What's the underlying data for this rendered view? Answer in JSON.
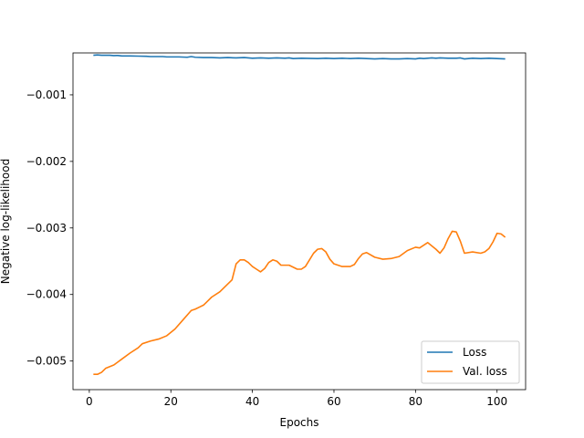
{
  "chart_data": {
    "type": "line",
    "title": "",
    "xlabel": "Epochs",
    "ylabel": "Negative log-likelihood",
    "xlim": [
      -4,
      107
    ],
    "ylim": [
      -0.00543,
      -0.00037
    ],
    "xticks": [
      0,
      20,
      40,
      60,
      80,
      100
    ],
    "xtick_labels": [
      "0",
      "20",
      "40",
      "60",
      "80",
      "100"
    ],
    "yticks": [
      -0.005,
      -0.004,
      -0.003,
      -0.002,
      -0.001
    ],
    "ytick_labels": [
      "−0.005",
      "−0.004",
      "−0.003",
      "−0.002",
      "−0.001"
    ],
    "grid": false,
    "legend_position": "lower-right",
    "series": [
      {
        "name": "Loss",
        "color": "#1f77b4",
        "points": [
          [
            1,
            -0.000405
          ],
          [
            2,
            -0.0004
          ],
          [
            3,
            -0.000405
          ],
          [
            5,
            -0.000405
          ],
          [
            6,
            -0.00041
          ],
          [
            7,
            -0.000408
          ],
          [
            8,
            -0.000415
          ],
          [
            10,
            -0.000415
          ],
          [
            12,
            -0.000418
          ],
          [
            14,
            -0.00042
          ],
          [
            15,
            -0.000425
          ],
          [
            18,
            -0.000425
          ],
          [
            19,
            -0.00043
          ],
          [
            22,
            -0.00043
          ],
          [
            24,
            -0.000435
          ],
          [
            25,
            -0.000425
          ],
          [
            26,
            -0.000435
          ],
          [
            28,
            -0.00044
          ],
          [
            30,
            -0.00044
          ],
          [
            32,
            -0.000445
          ],
          [
            34,
            -0.00044
          ],
          [
            36,
            -0.000445
          ],
          [
            38,
            -0.00044
          ],
          [
            40,
            -0.00045
          ],
          [
            42,
            -0.000445
          ],
          [
            44,
            -0.00045
          ],
          [
            46,
            -0.000445
          ],
          [
            48,
            -0.00045
          ],
          [
            49,
            -0.000445
          ],
          [
            50,
            -0.000455
          ],
          [
            52,
            -0.00045
          ],
          [
            56,
            -0.000455
          ],
          [
            58,
            -0.00045
          ],
          [
            60,
            -0.000455
          ],
          [
            62,
            -0.00045
          ],
          [
            64,
            -0.000455
          ],
          [
            66,
            -0.00045
          ],
          [
            68,
            -0.000455
          ],
          [
            70,
            -0.00046
          ],
          [
            72,
            -0.000455
          ],
          [
            74,
            -0.00046
          ],
          [
            76,
            -0.00046
          ],
          [
            78,
            -0.000455
          ],
          [
            80,
            -0.00046
          ],
          [
            81,
            -0.00045
          ],
          [
            82,
            -0.000455
          ],
          [
            84,
            -0.000445
          ],
          [
            85,
            -0.00045
          ],
          [
            86,
            -0.000445
          ],
          [
            88,
            -0.00045
          ],
          [
            90,
            -0.00045
          ],
          [
            91,
            -0.000445
          ],
          [
            92,
            -0.00046
          ],
          [
            94,
            -0.00045
          ],
          [
            96,
            -0.000455
          ],
          [
            98,
            -0.00045
          ],
          [
            100,
            -0.000455
          ],
          [
            102,
            -0.00046
          ]
        ]
      },
      {
        "name": "Val. loss",
        "color": "#ff7f0e",
        "points": [
          [
            1,
            -0.0052
          ],
          [
            2,
            -0.0052
          ],
          [
            3,
            -0.00517
          ],
          [
            4,
            -0.00511
          ],
          [
            6,
            -0.00506
          ],
          [
            8,
            -0.00497
          ],
          [
            10,
            -0.00488
          ],
          [
            12,
            -0.0048
          ],
          [
            13,
            -0.00474
          ],
          [
            15,
            -0.0047
          ],
          [
            17,
            -0.00467
          ],
          [
            19,
            -0.00462
          ],
          [
            21,
            -0.00452
          ],
          [
            23,
            -0.00438
          ],
          [
            25,
            -0.00424
          ],
          [
            26,
            -0.00422
          ],
          [
            27,
            -0.00419
          ],
          [
            28,
            -0.00416
          ],
          [
            29,
            -0.0041
          ],
          [
            30,
            -0.00404
          ],
          [
            32,
            -0.00396
          ],
          [
            34,
            -0.00384
          ],
          [
            35,
            -0.00378
          ],
          [
            36,
            -0.00354
          ],
          [
            37,
            -0.00348
          ],
          [
            38,
            -0.00348
          ],
          [
            39,
            -0.00352
          ],
          [
            40,
            -0.00358
          ],
          [
            41,
            -0.00362
          ],
          [
            42,
            -0.00366
          ],
          [
            43,
            -0.00361
          ],
          [
            44,
            -0.00352
          ],
          [
            45,
            -0.00348
          ],
          [
            46,
            -0.0035
          ],
          [
            47,
            -0.00356
          ],
          [
            49,
            -0.00356
          ],
          [
            51,
            -0.00362
          ],
          [
            52,
            -0.00362
          ],
          [
            53,
            -0.00358
          ],
          [
            54,
            -0.00348
          ],
          [
            55,
            -0.00338
          ],
          [
            56,
            -0.00332
          ],
          [
            57,
            -0.00331
          ],
          [
            58,
            -0.00336
          ],
          [
            59,
            -0.00347
          ],
          [
            60,
            -0.00354
          ],
          [
            62,
            -0.00358
          ],
          [
            64,
            -0.00358
          ],
          [
            65,
            -0.00355
          ],
          [
            66,
            -0.00346
          ],
          [
            67,
            -0.00339
          ],
          [
            68,
            -0.00337
          ],
          [
            70,
            -0.00344
          ],
          [
            72,
            -0.00347
          ],
          [
            74,
            -0.00346
          ],
          [
            76,
            -0.00343
          ],
          [
            78,
            -0.00334
          ],
          [
            80,
            -0.00329
          ],
          [
            81,
            -0.0033
          ],
          [
            83,
            -0.00322
          ],
          [
            85,
            -0.00332
          ],
          [
            86,
            -0.00338
          ],
          [
            87,
            -0.0033
          ],
          [
            88,
            -0.00316
          ],
          [
            89,
            -0.00305
          ],
          [
            90,
            -0.00306
          ],
          [
            91,
            -0.0032
          ],
          [
            92,
            -0.00338
          ],
          [
            94,
            -0.00336
          ],
          [
            96,
            -0.00338
          ],
          [
            97,
            -0.00336
          ],
          [
            98,
            -0.00331
          ],
          [
            99,
            -0.00321
          ],
          [
            100,
            -0.00308
          ],
          [
            101,
            -0.00309
          ],
          [
            102,
            -0.00314
          ]
        ]
      }
    ]
  }
}
